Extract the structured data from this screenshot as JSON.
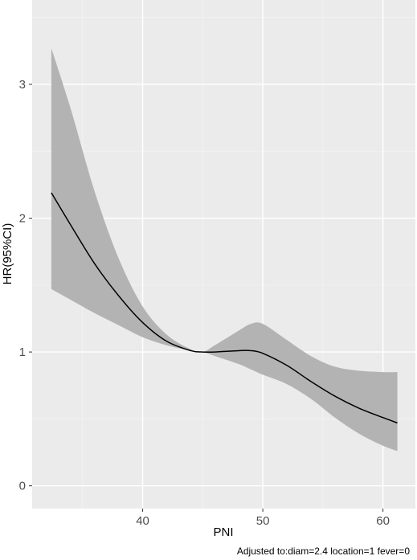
{
  "chart_data": {
    "type": "line",
    "xlabel": "PNI",
    "ylabel": "HR(95%CI)",
    "caption": "Adjusted to:diam=2.4 location=1 fever=0",
    "xlim": [
      30.8,
      62.7
    ],
    "ylim": [
      -0.17,
      3.63
    ],
    "x_ticks": [
      40,
      50,
      60
    ],
    "y_ticks": [
      0,
      1,
      2,
      3
    ],
    "grid": true,
    "colors": {
      "panel": "#ebebeb",
      "grid_major": "#ffffff",
      "grid_minor": "#f4f4f4",
      "ribbon": "#b3b3b3",
      "line": "#000000"
    },
    "series": [
      {
        "x": [
          32.4,
          34,
          36,
          38,
          40,
          42,
          44,
          45,
          46,
          48,
          49,
          50,
          52,
          54,
          56,
          58,
          60,
          61.2
        ],
        "y": [
          2.19,
          1.95,
          1.66,
          1.42,
          1.22,
          1.08,
          1.01,
          1.0,
          1.0,
          1.01,
          1.01,
          0.99,
          0.9,
          0.78,
          0.67,
          0.58,
          0.51,
          0.47
        ],
        "lower": [
          1.47,
          1.39,
          1.29,
          1.2,
          1.11,
          1.05,
          1.01,
          1.0,
          0.97,
          0.91,
          0.87,
          0.83,
          0.76,
          0.65,
          0.51,
          0.39,
          0.3,
          0.26
        ],
        "upper": [
          3.27,
          2.82,
          2.2,
          1.7,
          1.34,
          1.13,
          1.02,
          1.0,
          1.05,
          1.16,
          1.21,
          1.21,
          1.09,
          0.97,
          0.89,
          0.86,
          0.85,
          0.85
        ]
      }
    ]
  }
}
